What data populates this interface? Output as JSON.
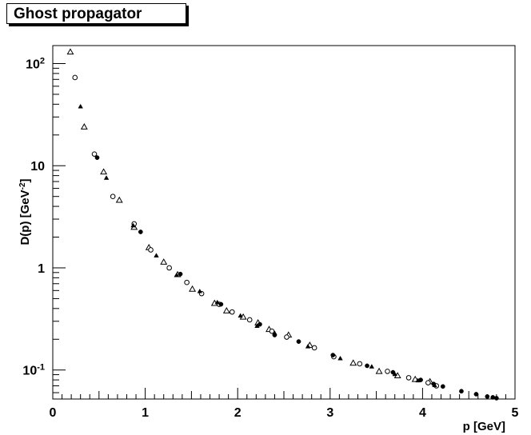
{
  "chart_data": {
    "type": "scatter",
    "title": "Ghost propagator",
    "xlabel": "p [GeV]",
    "ylabel": "D(p) [GeV",
    "ylabel_exp": "-2",
    "ylabel_close": "]",
    "xlim": [
      0,
      5
    ],
    "ylim": [
      0.052,
      150
    ],
    "yscale": "log",
    "x_ticks": [
      "0",
      "1",
      "2",
      "3",
      "4",
      "5"
    ],
    "y_ticks": [
      {
        "base": "10",
        "exp": "2",
        "value": 100
      },
      {
        "base": "10",
        "exp": "",
        "value": 10
      },
      {
        "base": "1",
        "exp": "",
        "value": 1
      },
      {
        "base": "10",
        "exp": "-1",
        "value": 0.1
      }
    ],
    "series": [
      {
        "marker": "open-triangle",
        "x": [
          0.19,
          0.34,
          0.55,
          0.72,
          0.88,
          1.04,
          1.2,
          1.35,
          1.51,
          1.75,
          1.88,
          2.06,
          2.22,
          2.34,
          2.55,
          2.78,
          3.25,
          3.53,
          3.73,
          3.92,
          4.08
        ],
        "y": [
          130,
          24,
          8.7,
          4.6,
          2.5,
          1.58,
          1.14,
          0.86,
          0.62,
          0.45,
          0.38,
          0.33,
          0.29,
          0.25,
          0.22,
          0.175,
          0.117,
          0.097,
          0.088,
          0.081,
          0.077
        ]
      },
      {
        "marker": "open-circle",
        "x": [
          0.24,
          0.45,
          0.65,
          0.88,
          1.06,
          1.26,
          1.45,
          1.61,
          1.8,
          1.94,
          2.13,
          2.37,
          2.53,
          2.83,
          3.04,
          3.32,
          3.62,
          3.85,
          4.06,
          4.15
        ],
        "y": [
          73,
          13,
          5.0,
          2.7,
          1.5,
          1.0,
          0.72,
          0.56,
          0.44,
          0.37,
          0.31,
          0.24,
          0.21,
          0.165,
          0.135,
          0.115,
          0.097,
          0.084,
          0.075,
          0.07
        ]
      },
      {
        "marker": "filled-triangle",
        "x": [
          0.3,
          0.58,
          0.87,
          1.12,
          1.34,
          1.59,
          1.78,
          2.03,
          2.21,
          2.4,
          2.76,
          3.11,
          3.45,
          3.7,
          3.95,
          4.13
        ],
        "y": [
          38,
          7.6,
          2.6,
          1.32,
          0.85,
          0.59,
          0.46,
          0.34,
          0.27,
          0.23,
          0.17,
          0.13,
          0.108,
          0.091,
          0.079,
          0.071
        ]
      },
      {
        "marker": "filled-circle",
        "x": [
          0.48,
          0.95,
          1.38,
          1.82,
          2.24,
          2.4,
          2.66,
          3.03,
          3.4,
          3.68,
          3.98,
          4.12,
          4.22,
          4.42,
          4.58,
          4.7,
          4.76,
          4.8
        ],
        "y": [
          12,
          2.25,
          0.87,
          0.44,
          0.28,
          0.22,
          0.19,
          0.14,
          0.11,
          0.095,
          0.08,
          0.073,
          0.069,
          0.062,
          0.058,
          0.055,
          0.054,
          0.053
        ]
      }
    ]
  }
}
